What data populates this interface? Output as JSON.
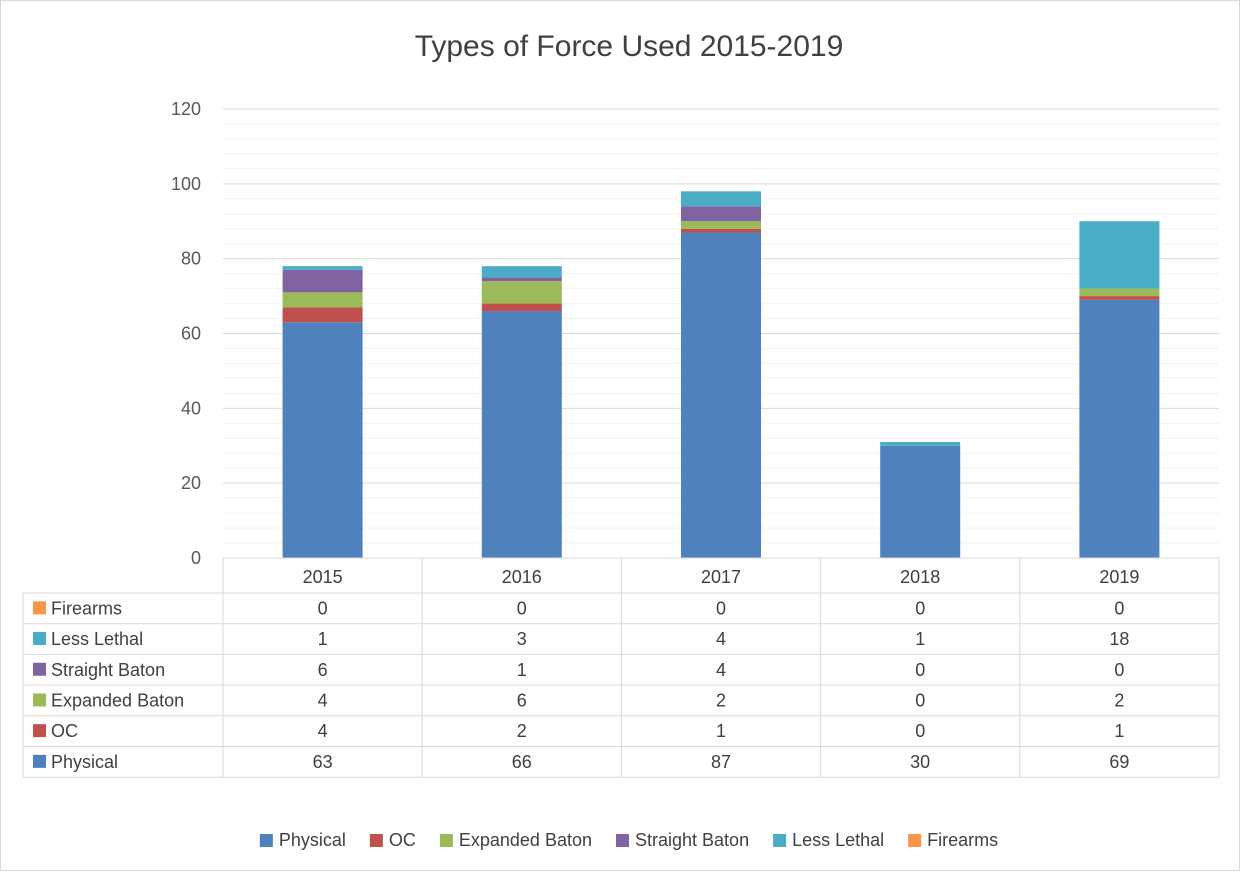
{
  "chart_data": {
    "type": "bar",
    "stacked": true,
    "title": "Types of Force Used 2015-2019",
    "categories": [
      "2015",
      "2016",
      "2017",
      "2018",
      "2019"
    ],
    "ylim": [
      0,
      120
    ],
    "y_ticks": [
      0,
      20,
      40,
      60,
      80,
      100,
      120
    ],
    "grid": true,
    "legend_position": "bottom",
    "data_table": true,
    "series": [
      {
        "name": "Physical",
        "color": "#4f81bd",
        "values": [
          63,
          66,
          87,
          30,
          69
        ]
      },
      {
        "name": "OC",
        "color": "#c0504d",
        "values": [
          4,
          2,
          1,
          0,
          1
        ]
      },
      {
        "name": "Expanded Baton",
        "color": "#9bbb59",
        "values": [
          4,
          6,
          2,
          0,
          2
        ]
      },
      {
        "name": "Straight Baton",
        "color": "#8064a2",
        "values": [
          6,
          1,
          4,
          0,
          0
        ]
      },
      {
        "name": "Less Lethal",
        "color": "#4bacc6",
        "values": [
          1,
          3,
          4,
          1,
          18
        ]
      },
      {
        "name": "Firearms",
        "color": "#f79646",
        "values": [
          0,
          0,
          0,
          0,
          0
        ]
      }
    ]
  }
}
